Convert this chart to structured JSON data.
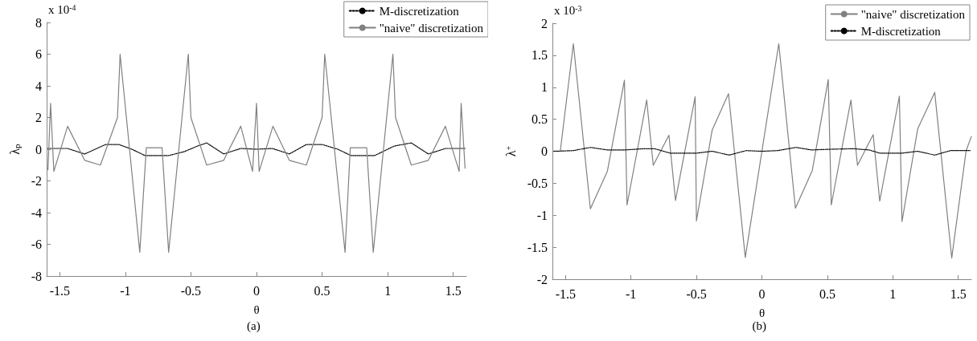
{
  "chart_data": [
    {
      "type": "line",
      "xlabel": "θ",
      "ylabel": "λ$_{p}$",
      "annotations": [
        "x 10$^{-4}$",
        "(a)"
      ],
      "xlim": [
        -1.6,
        1.6
      ],
      "xticks": [
        -1.5,
        -1,
        -0.5,
        0,
        0.5,
        1,
        1.5
      ],
      "ylim": [
        -8,
        8
      ],
      "yticks": [
        -8,
        -6,
        -4,
        -2,
        0,
        2,
        4,
        6,
        8
      ],
      "grid": false,
      "legend": "top right",
      "marker": "none",
      "series": [
        {
          "name": "M-discretization",
          "color": "#000000",
          "line_style": "dotted",
          "x": [
            -1.59,
            -1.44,
            -1.31,
            -1.15,
            -1.05,
            -0.95,
            -0.85,
            -0.67,
            -0.55,
            -0.45,
            -0.38,
            -0.25,
            -0.12,
            0,
            0.12,
            0.25,
            0.38,
            0.5,
            0.62,
            0.72,
            0.9,
            1.05,
            1.18,
            1.31,
            1.44,
            1.59
          ],
          "values": [
            0.05,
            0.05,
            -0.3,
            0.3,
            0.3,
            0,
            -0.4,
            -0.4,
            -0.15,
            0.2,
            0.4,
            -0.3,
            0.05,
            0,
            0.05,
            -0.3,
            0.3,
            0.3,
            0,
            -0.4,
            -0.4,
            0.2,
            0.4,
            -0.3,
            0.05,
            0.05
          ]
        },
        {
          "name": "\"naive\" discretization",
          "color": "#808080",
          "line_style": "solid",
          "x": [
            -1.59,
            -1.57,
            -1.545,
            -1.44,
            -1.31,
            -1.19,
            -1.06,
            -1.04,
            -0.89,
            -0.84,
            -0.72,
            -0.67,
            -0.52,
            -0.5,
            -0.38,
            -0.25,
            -0.12,
            -0.03,
            0,
            0.02,
            0.125,
            0.25,
            0.38,
            0.5,
            0.52,
            0.675,
            0.715,
            0.84,
            0.89,
            1.04,
            1.06,
            1.18,
            1.31,
            1.44,
            1.545,
            1.56,
            1.59
          ],
          "values": [
            -1.3,
            2.9,
            -1.4,
            1.45,
            -0.7,
            -1,
            2,
            6,
            -6.5,
            0.1,
            0.1,
            -6.5,
            6,
            2,
            -1,
            -0.7,
            1.45,
            -1.4,
            2.9,
            -1.4,
            1.45,
            -0.7,
            -1,
            2,
            6,
            -6.5,
            0.1,
            0.1,
            -6.5,
            6,
            2,
            -1,
            -0.7,
            1.45,
            -1.4,
            2.9,
            -1.2
          ]
        }
      ]
    },
    {
      "type": "line",
      "xlabel": "θ",
      "ylabel": "λ$^{+}$",
      "annotations": [
        "x 10$^{-3}$",
        "(b)"
      ],
      "xlim": [
        -1.6,
        1.6
      ],
      "xticks": [
        -1.5,
        -1,
        -0.5,
        0,
        0.5,
        1,
        1.5
      ],
      "ylim": [
        -2,
        2
      ],
      "yticks": [
        -2,
        -1.5,
        -1,
        -0.5,
        0,
        0.5,
        1,
        1.5,
        2
      ],
      "grid": false,
      "legend": "top right",
      "marker": "none",
      "series": [
        {
          "name": "\"naive\" discretization",
          "color": "#808080",
          "line_style": "solid",
          "x": [
            -1.59,
            -1.54,
            -1.44,
            -1.31,
            -1.18,
            -1.05,
            -1.03,
            -0.88,
            -0.83,
            -0.71,
            -0.66,
            -0.51,
            -0.5,
            -0.38,
            -0.255,
            -0.127,
            0.129,
            0.256,
            0.385,
            0.507,
            0.53,
            0.68,
            0.73,
            0.85,
            0.9,
            1.05,
            1.07,
            1.19,
            1.32,
            1.45,
            1.56,
            1.6
          ],
          "values": [
            0,
            0,
            1.68,
            -0.9,
            -0.31,
            1.11,
            -0.84,
            0.8,
            -0.22,
            0.25,
            -0.77,
            0.85,
            -1.09,
            0.33,
            0.9,
            -1.66,
            1.68,
            -0.89,
            -0.3,
            1.12,
            -0.84,
            0.8,
            -0.22,
            0.26,
            -0.78,
            0.86,
            -1.1,
            0.35,
            0.92,
            -1.67,
            0.01,
            0.23
          ]
        },
        {
          "name": "M-discretization",
          "color": "#000000",
          "line_style": "dotted",
          "x": [
            -1.59,
            -1.44,
            -1.31,
            -1.18,
            -1.05,
            -0.9,
            -0.82,
            -0.7,
            -0.5,
            -0.38,
            -0.25,
            -0.12,
            0,
            0.12,
            0.26,
            0.38,
            0.5,
            0.7,
            0.82,
            0.9,
            1.07,
            1.19,
            1.32,
            1.44,
            1.59
          ],
          "values": [
            0,
            0.01,
            0.06,
            0.02,
            0.02,
            0.04,
            0.04,
            -0.03,
            -0.03,
            0,
            -0.06,
            0.01,
            0,
            0.01,
            0.06,
            0.02,
            0.03,
            0.04,
            0.02,
            -0.03,
            -0.03,
            0,
            -0.06,
            0.01,
            0.01
          ]
        }
      ]
    }
  ]
}
